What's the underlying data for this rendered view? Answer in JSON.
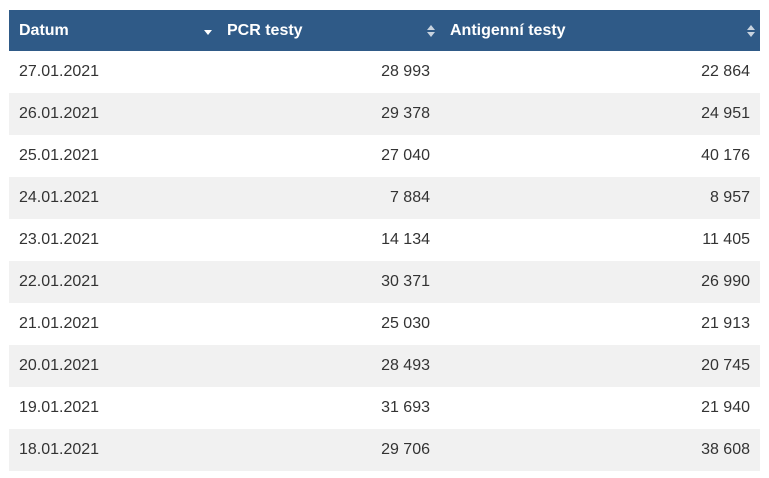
{
  "table": {
    "columns": [
      {
        "label": "Datum",
        "sort": "sort-descending-icon"
      },
      {
        "label": "PCR testy",
        "sort": "sort-both-icon"
      },
      {
        "label": "Antigenní testy",
        "sort": "sort-both-icon"
      }
    ],
    "rows": [
      [
        "27.01.2021",
        "28 993",
        "22 864"
      ],
      [
        "26.01.2021",
        "29 378",
        "24 951"
      ],
      [
        "25.01.2021",
        "27 040",
        "40 176"
      ],
      [
        "24.01.2021",
        "7 884",
        "8 957"
      ],
      [
        "23.01.2021",
        "14 134",
        "11 405"
      ],
      [
        "22.01.2021",
        "30 371",
        "26 990"
      ],
      [
        "21.01.2021",
        "25 030",
        "21 913"
      ],
      [
        "20.01.2021",
        "28 493",
        "20 745"
      ],
      [
        "19.01.2021",
        "31 693",
        "21 940"
      ],
      [
        "18.01.2021",
        "29 706",
        "38 608"
      ]
    ]
  },
  "colors": {
    "header_bg": "#2f5a87",
    "row_alt": "#f1f1f1"
  }
}
